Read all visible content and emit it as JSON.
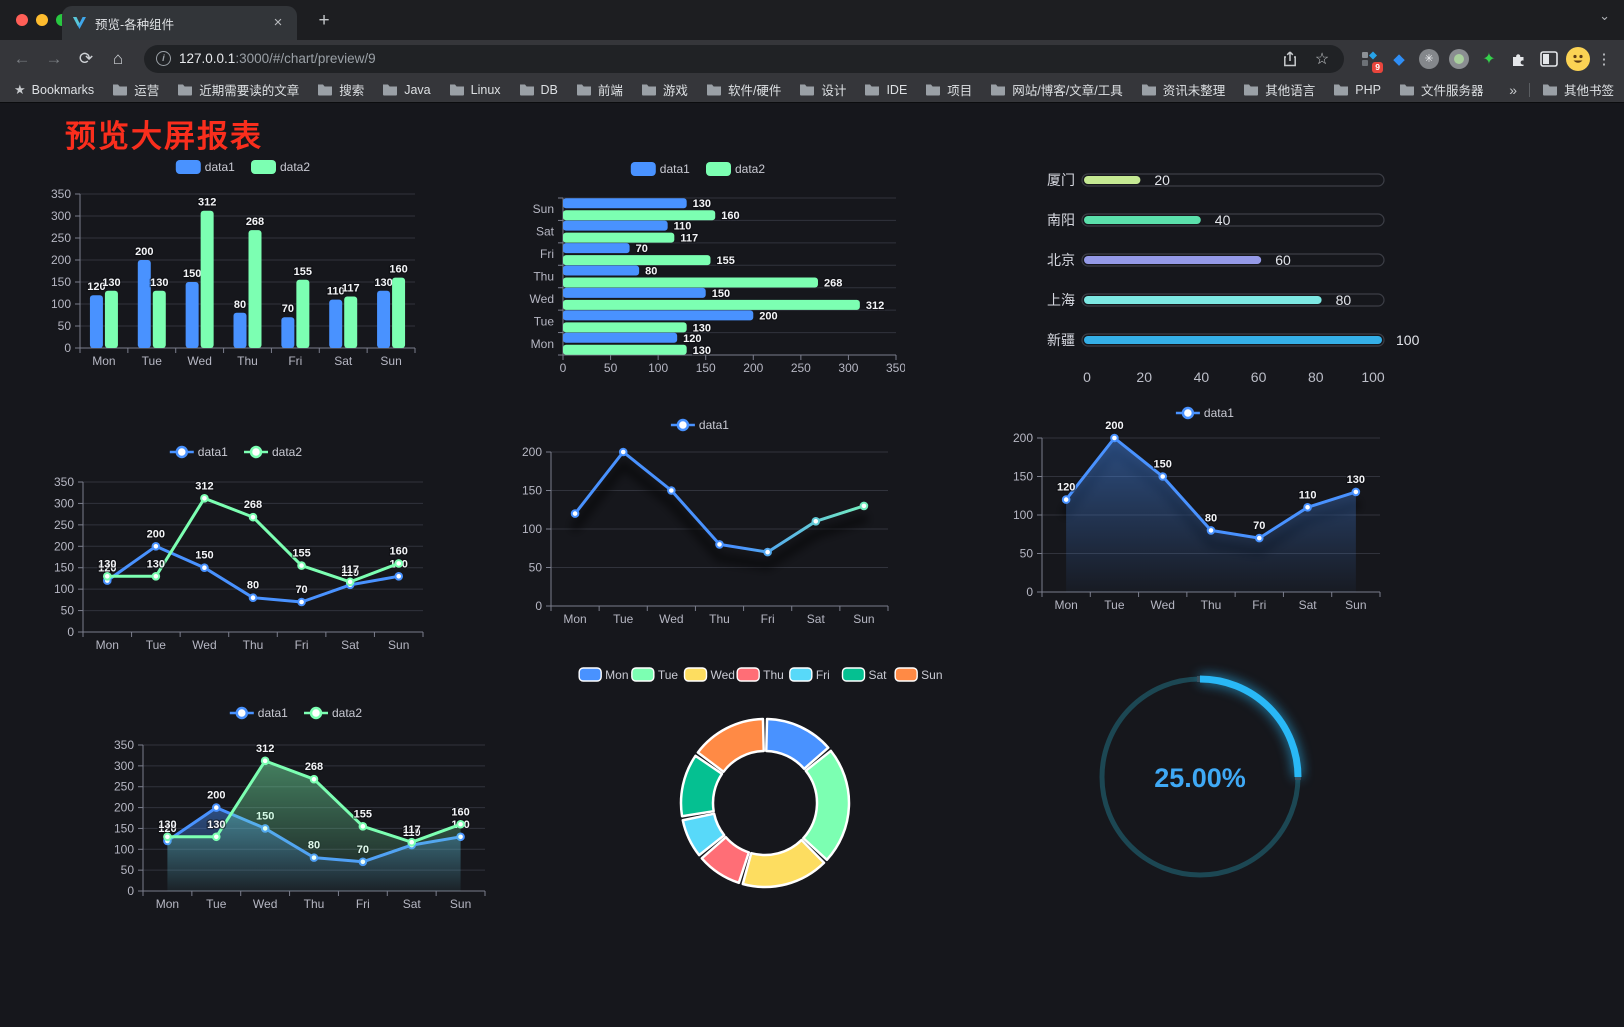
{
  "browser": {
    "tab_title": "预览-各种组件",
    "url": {
      "host": "127.0.0.1",
      "path": ":3000/#/chart/preview/9"
    },
    "glyphs": {
      "close_tab": "×",
      "new_tab": "+",
      "tab_search": "⌄",
      "menu": "⋮",
      "overflow": "»",
      "info": "i",
      "back": "←",
      "forward": "→",
      "reload": "⟳",
      "home": "⌂",
      "bookmark_star": "☆",
      "bookmarks_star_item": "★",
      "asterisk_ext": "✳",
      "green_star_ext": "✦",
      "diamond_ext": "◆"
    },
    "extension_badge": "9",
    "bookmarks_label": "Bookmarks",
    "bookmarks": [
      "运营",
      "近期需要读的文章",
      "搜索",
      "Java",
      "Linux",
      "DB",
      "前端",
      "游戏",
      "软件/硬件",
      "设计",
      "IDE",
      "项目",
      "网站/博客/文章/工具",
      "资讯未整理",
      "其他语言",
      "PHP",
      "文件服务器"
    ],
    "others_label": "其他书签"
  },
  "page": {
    "title": "预览大屏报表",
    "title_color": "#fa2e1d",
    "background": "#16171c"
  },
  "chart_data": [
    {
      "id": "grouped-bar",
      "type": "bar",
      "categories": [
        "Mon",
        "Tue",
        "Wed",
        "Thu",
        "Fri",
        "Sat",
        "Sun"
      ],
      "series": [
        {
          "name": "data1",
          "color": "#4992ff",
          "values": [
            120,
            200,
            150,
            80,
            70,
            110,
            130
          ]
        },
        {
          "name": "data2",
          "color": "#7cffb2",
          "values": [
            130,
            130,
            312,
            268,
            155,
            117,
            160
          ]
        }
      ],
      "ylim": [
        0,
        350
      ],
      "ystep": 50,
      "legend": "rect",
      "value_labels": true,
      "grid": true
    },
    {
      "id": "horizontal-grouped-bar",
      "type": "hbar",
      "categories": [
        "Mon",
        "Tue",
        "Wed",
        "Thu",
        "Fri",
        "Sat",
        "Sun"
      ],
      "categories_top_to_bottom": [
        "Sun",
        "Sat",
        "Fri",
        "Thu",
        "Wed",
        "Tue",
        "Mon"
      ],
      "series": [
        {
          "name": "data1",
          "color": "#4992ff",
          "values": [
            120,
            200,
            150,
            80,
            70,
            110,
            130
          ]
        },
        {
          "name": "data2",
          "color": "#7cffb2",
          "values": [
            130,
            130,
            312,
            268,
            155,
            117,
            160
          ]
        }
      ],
      "xlim": [
        0,
        350
      ],
      "xstep": 50,
      "legend": "rect",
      "value_labels": true
    },
    {
      "id": "capsule-progress",
      "type": "capsule",
      "rows": [
        {
          "label": "厦门",
          "value": 20,
          "color": "#c5e993"
        },
        {
          "label": "南阳",
          "value": 40,
          "color": "#5be0ab"
        },
        {
          "label": "北京",
          "value": 60,
          "color": "#959ae8"
        },
        {
          "label": "上海",
          "value": 80,
          "color": "#7de8e3"
        },
        {
          "label": "新疆",
          "value": 100,
          "color": "#35b0e8"
        }
      ],
      "xticks": [
        0,
        20,
        40,
        60,
        80,
        100
      ],
      "xlim": [
        0,
        100
      ]
    },
    {
      "id": "two-line",
      "type": "line",
      "categories": [
        "Mon",
        "Tue",
        "Wed",
        "Thu",
        "Fri",
        "Sat",
        "Sun"
      ],
      "series": [
        {
          "name": "data1",
          "color": "#4992ff",
          "values": [
            120,
            200,
            150,
            80,
            70,
            110,
            130
          ]
        },
        {
          "name": "data2",
          "color": "#7cffb2",
          "values": [
            130,
            130,
            312,
            268,
            155,
            117,
            160
          ]
        }
      ],
      "ylim": [
        0,
        350
      ],
      "ystep": 50,
      "labels": true,
      "legend": "line"
    },
    {
      "id": "gradient-line",
      "type": "line",
      "categories": [
        "Mon",
        "Tue",
        "Wed",
        "Thu",
        "Fri",
        "Sat",
        "Sun"
      ],
      "series": [
        {
          "name": "data1",
          "gradient": [
            "#4992ff",
            "#7cffb2"
          ],
          "values": [
            120,
            200,
            150,
            80,
            70,
            110,
            130
          ]
        }
      ],
      "ylim": [
        0,
        200
      ],
      "ystep": 50,
      "labels": false,
      "shadow": true,
      "legend": "line"
    },
    {
      "id": "area-line",
      "type": "line",
      "categories": [
        "Mon",
        "Tue",
        "Wed",
        "Thu",
        "Fri",
        "Sat",
        "Sun"
      ],
      "series": [
        {
          "name": "data1",
          "color": "#4992ff",
          "area": true,
          "values": [
            120,
            200,
            150,
            80,
            70,
            110,
            130
          ]
        }
      ],
      "ylim": [
        0,
        200
      ],
      "ystep": 50,
      "labels": true,
      "shadow": true,
      "legend": "line"
    },
    {
      "id": "two-area-line",
      "type": "line",
      "categories": [
        "Mon",
        "Tue",
        "Wed",
        "Thu",
        "Fri",
        "Sat",
        "Sun"
      ],
      "series": [
        {
          "name": "data1",
          "color": "#4992ff",
          "area": true,
          "values": [
            120,
            200,
            150,
            80,
            70,
            110,
            130
          ]
        },
        {
          "name": "data2",
          "color": "#7cffb2",
          "area": true,
          "values": [
            130,
            130,
            312,
            268,
            155,
            117,
            160
          ]
        }
      ],
      "ylim": [
        0,
        350
      ],
      "ystep": 50,
      "labels": true,
      "legend": "line"
    },
    {
      "id": "donut",
      "type": "donut",
      "legend": "rect-bordered",
      "items": [
        {
          "label": "Mon",
          "value": 120,
          "color": "#4992ff"
        },
        {
          "label": "Tue",
          "value": 200,
          "color": "#7cffb2"
        },
        {
          "label": "Wed",
          "value": 150,
          "color": "#fddd60"
        },
        {
          "label": "Thu",
          "value": 80,
          "color": "#ff6e76"
        },
        {
          "label": "Fri",
          "value": 70,
          "color": "#58d9f9"
        },
        {
          "label": "Sat",
          "value": 110,
          "color": "#05c091"
        },
        {
          "label": "Sun",
          "value": 130,
          "color": "#ff8a45"
        }
      ]
    },
    {
      "id": "progress-gauge",
      "type": "gauge",
      "value": 25,
      "max": 100,
      "display": "25.00%",
      "color": "#29b8f6",
      "track_color": "#1c4753",
      "text_color": "#3fa9f5"
    }
  ]
}
